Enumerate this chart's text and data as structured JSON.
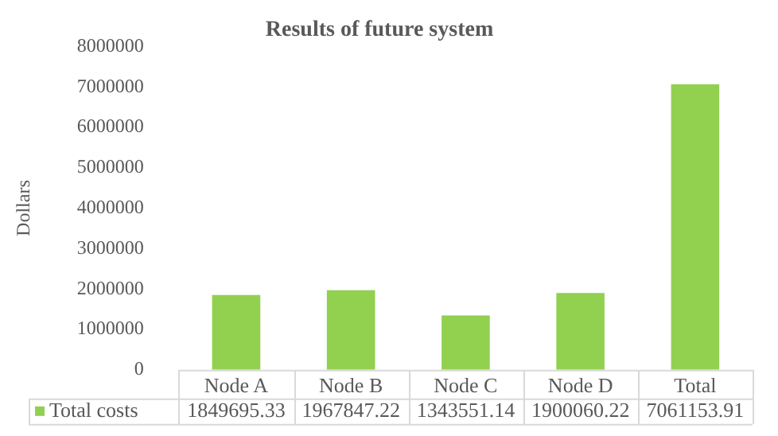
{
  "chart_data": {
    "type": "bar",
    "title": "Results of future system",
    "ylabel": "Dollars",
    "categories": [
      "Node A",
      "Node B",
      "Node C",
      "Node D",
      "Total"
    ],
    "series": [
      {
        "name": "Total costs",
        "color": "#92d050",
        "values": [
          1849695.33,
          1967847.22,
          1343551.14,
          1900060.22,
          7061153.91
        ]
      }
    ],
    "ylim": [
      0,
      8000000
    ],
    "yticks": [
      0,
      1000000,
      2000000,
      3000000,
      4000000,
      5000000,
      6000000,
      7000000,
      8000000
    ],
    "grid": false,
    "legend": "bottom",
    "data_labels": true
  }
}
